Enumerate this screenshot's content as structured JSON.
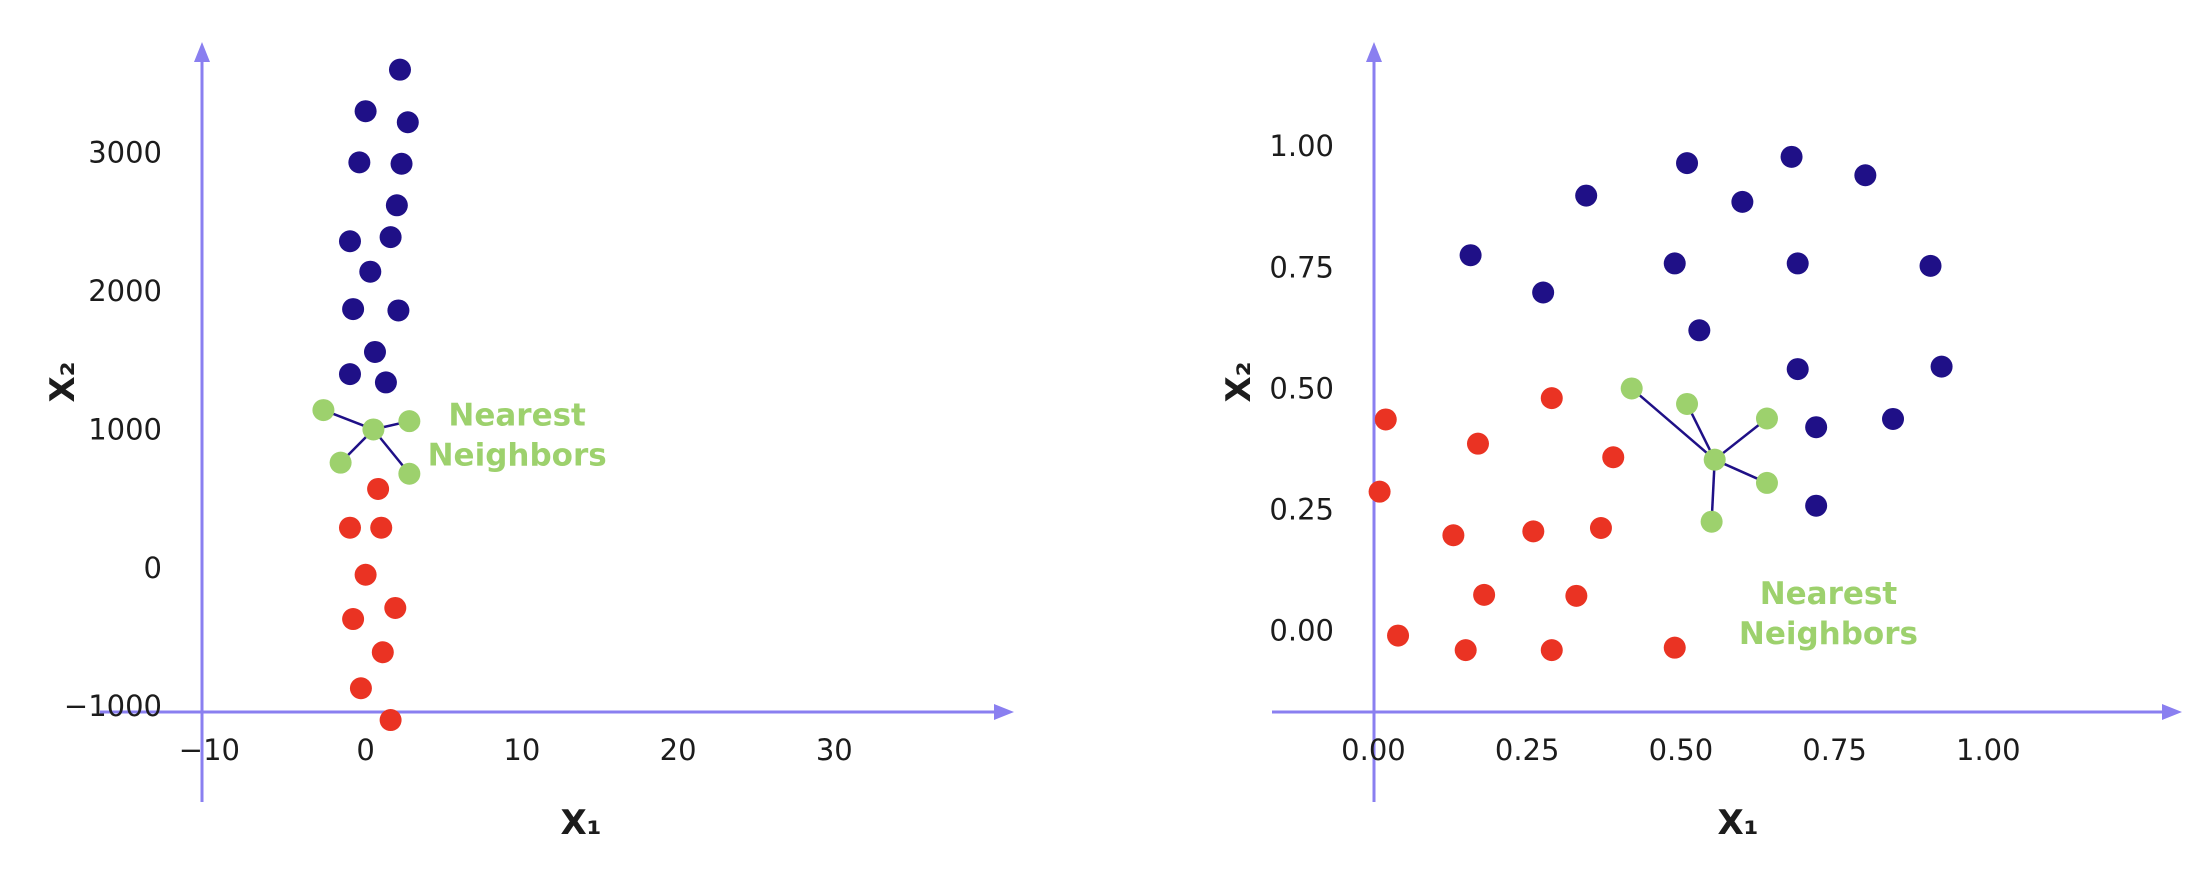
{
  "colors": {
    "axis": "#8a7ff0",
    "class_a": "#1f1087",
    "class_b": "#ea3323",
    "neighbor": "#9dd16d",
    "edge": "#1f1087"
  },
  "chart_data": [
    {
      "type": "scatter",
      "xlabel": "X₁",
      "ylabel": "X₂",
      "xticks": [
        -10,
        0,
        10,
        20,
        30
      ],
      "yticks": [
        -1000,
        0,
        1000,
        2000,
        3000
      ],
      "xtick_labels": [
        "−10",
        "0",
        "10",
        "20",
        "30"
      ],
      "ytick_labels": [
        "−1000",
        "0",
        "1000",
        "2000",
        "3000"
      ],
      "xlim": [
        -17,
        41.5
      ],
      "ylim": [
        -1750,
        3800
      ],
      "annotation": {
        "lines": [
          "Nearest",
          "Neighbors"
        ],
        "x": 9.7,
        "y": 1030
      },
      "series": [
        {
          "class": "class_a",
          "points": [
            [
              2.2,
              3600
            ],
            [
              0,
              3300
            ],
            [
              2.7,
              3220
            ],
            [
              -0.4,
              2930
            ],
            [
              2.3,
              2920
            ],
            [
              2.0,
              2620
            ],
            [
              -1.0,
              2360
            ],
            [
              1.6,
              2390
            ],
            [
              0.3,
              2140
            ],
            [
              -0.8,
              1870
            ],
            [
              2.1,
              1860
            ],
            [
              0.6,
              1560
            ],
            [
              -1.0,
              1400
            ],
            [
              1.3,
              1340
            ]
          ]
        },
        {
          "class": "class_b",
          "points": [
            [
              0.8,
              570
            ],
            [
              -1.0,
              290
            ],
            [
              1.0,
              290
            ],
            [
              0,
              -50
            ],
            [
              -0.8,
              -370
            ],
            [
              1.9,
              -290
            ],
            [
              1.1,
              -610
            ],
            [
              -0.3,
              -870
            ],
            [
              1.6,
              -1100
            ]
          ]
        },
        {
          "class": "neighbor",
          "query": [
            0.5,
            1000
          ],
          "points": [
            [
              -2.7,
              1140
            ],
            [
              2.8,
              1060
            ],
            [
              -1.6,
              760
            ],
            [
              2.8,
              680
            ]
          ]
        }
      ]
    },
    {
      "type": "scatter",
      "xlabel": "X₁",
      "ylabel": "X₂",
      "xticks": [
        0,
        0.25,
        0.5,
        0.75,
        1.0
      ],
      "yticks": [
        0,
        0.25,
        0.5,
        0.75,
        1.0
      ],
      "xtick_labels": [
        "0.00",
        "0.25",
        "0.50",
        "0.75",
        "1.00"
      ],
      "ytick_labels": [
        "0.00",
        "0.25",
        "0.50",
        "0.75",
        "1.00"
      ],
      "xlim": [
        -0.165,
        1.315
      ],
      "ylim": [
        -0.37,
        1.215
      ],
      "annotation": {
        "lines": [
          "Nearest",
          "Neighbors"
        ],
        "x": 0.74,
        "y": 0.055
      },
      "series": [
        {
          "class": "class_a",
          "points": [
            [
              0.346,
              0.898
            ],
            [
              0.51,
              0.965
            ],
            [
              0.68,
              0.978
            ],
            [
              0.8,
              0.94
            ],
            [
              0.6,
              0.885
            ],
            [
              0.158,
              0.775
            ],
            [
              0.49,
              0.758
            ],
            [
              0.69,
              0.758
            ],
            [
              0.906,
              0.753
            ],
            [
              0.276,
              0.698
            ],
            [
              0.53,
              0.62
            ],
            [
              0.69,
              0.54
            ],
            [
              0.924,
              0.545
            ],
            [
              0.72,
              0.42
            ],
            [
              0.845,
              0.437
            ],
            [
              0.72,
              0.258
            ]
          ]
        },
        {
          "class": "class_b",
          "points": [
            [
              0.02,
              0.436
            ],
            [
              0.29,
              0.48
            ],
            [
              0.17,
              0.386
            ],
            [
              0.39,
              0.358
            ],
            [
              0.01,
              0.287
            ],
            [
              0.13,
              0.197
            ],
            [
              0.26,
              0.205
            ],
            [
              0.37,
              0.212
            ],
            [
              0.18,
              0.074
            ],
            [
              0.33,
              0.072
            ],
            [
              0.04,
              -0.01
            ],
            [
              0.15,
              -0.04
            ],
            [
              0.29,
              -0.04
            ],
            [
              0.49,
              -0.035
            ]
          ]
        },
        {
          "class": "neighbor",
          "query": [
            0.555,
            0.353
          ],
          "points": [
            [
              0.42,
              0.5
            ],
            [
              0.51,
              0.468
            ],
            [
              0.64,
              0.438
            ],
            [
              0.64,
              0.305
            ],
            [
              0.55,
              0.225
            ]
          ]
        }
      ]
    }
  ]
}
